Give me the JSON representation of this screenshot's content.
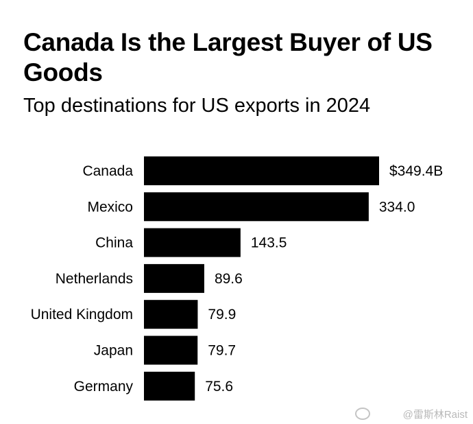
{
  "header": {
    "title": "Canada Is the Largest Buyer of US Goods",
    "subtitle": "Top destinations for US exports in 2024"
  },
  "watermark": {
    "text": "@雷斯林Raist"
  },
  "colors": {
    "bar": "#000000",
    "background": "#ffffff"
  },
  "chart_data": {
    "type": "bar",
    "orientation": "horizontal",
    "title": "Canada Is the Largest Buyer of US Goods",
    "subtitle": "Top destinations for US exports in 2024",
    "categories": [
      "Canada",
      "Mexico",
      "China",
      "Netherlands",
      "United Kingdom",
      "Japan",
      "Germany"
    ],
    "values": [
      349.4,
      334.0,
      143.5,
      89.6,
      79.9,
      79.7,
      75.6
    ],
    "value_labels": [
      "$349.4B",
      "334.0",
      "143.5",
      "89.6",
      "79.9",
      "79.7",
      "75.6"
    ],
    "xlabel": "",
    "ylabel": "",
    "xlim": [
      0,
      349.4
    ],
    "grid": false,
    "legend": "none"
  }
}
